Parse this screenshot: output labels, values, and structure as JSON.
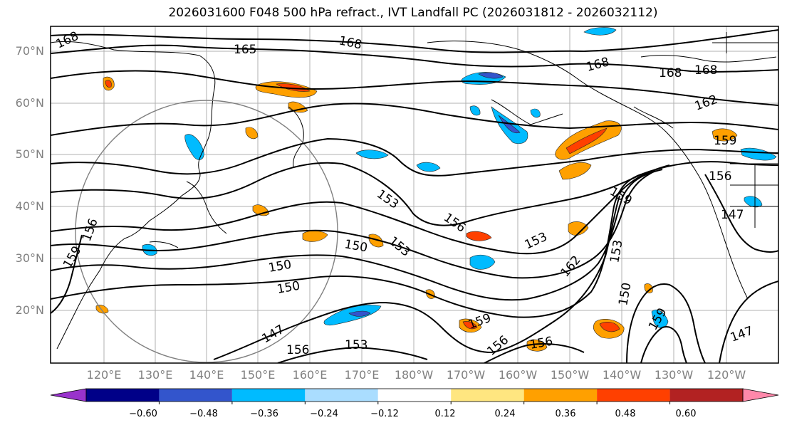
{
  "title": "2026031600 F048 500 hPa refract., IVT Landfall PC (2026031812 - 2026032112)",
  "latitude_labels": [
    "70°N",
    "60°N",
    "50°N",
    "40°N",
    "30°N",
    "20°N"
  ],
  "longitude_labels": [
    "120°E",
    "130°E",
    "140°E",
    "150°E",
    "160°E",
    "170°E",
    "180°W",
    "170°W",
    "160°W",
    "150°W",
    "140°W",
    "130°W",
    "120°W"
  ],
  "contour_labels": [
    "168",
    "165",
    "168",
    "168",
    "168",
    "168",
    "162",
    "159",
    "156",
    "147",
    "153",
    "156",
    "153",
    "153",
    "159",
    "162",
    "153",
    "150",
    "150",
    "150",
    "150",
    "159",
    "156",
    "156",
    "147",
    "156",
    "153",
    "159",
    "156",
    "159",
    "147"
  ],
  "colorbar": {
    "colors": [
      "#9933cc",
      "#000088",
      "#3355cc",
      "#00bbff",
      "#aaddff",
      "#ffffff",
      "#ffe680",
      "#ffa000",
      "#ff4000",
      "#b22222",
      "#ff88aa"
    ],
    "tick_labels": [
      "−0.60",
      "−0.48",
      "−0.36",
      "−0.24",
      "−0.12",
      "0.12",
      "0.24",
      "0.36",
      "0.48",
      "0.60"
    ]
  }
}
